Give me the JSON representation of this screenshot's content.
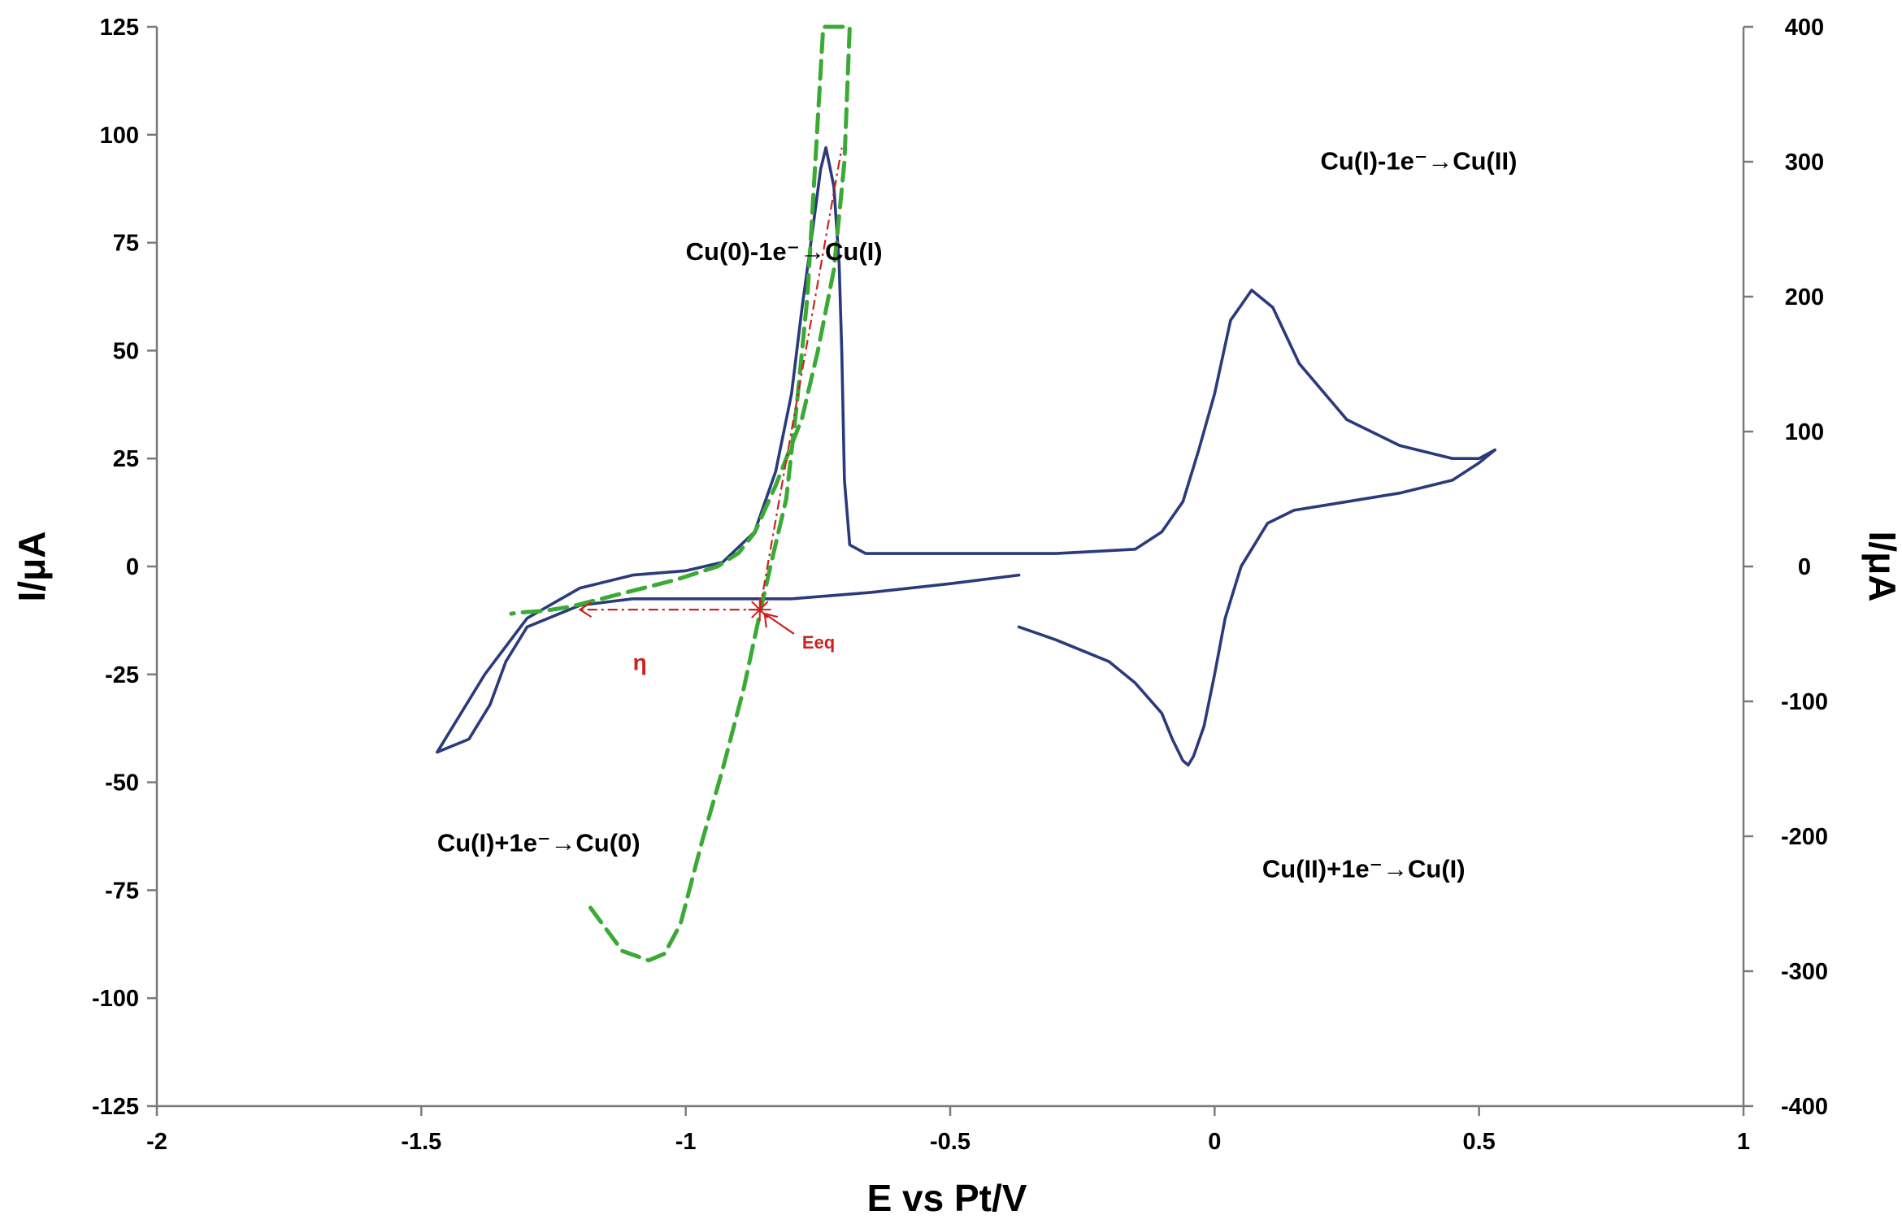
{
  "chart_data": {
    "type": "line",
    "title": "",
    "xlabel": "E vs Pt/V",
    "ylabel_left": "I/μA",
    "ylabel_right": "I/μA",
    "xlim": [
      -2,
      1
    ],
    "ylim_left": [
      -125,
      125
    ],
    "ylim_right": [
      -400,
      400
    ],
    "x_ticks": [
      "-2",
      "-1.5",
      "-1",
      "-0.5",
      "0",
      "0.5",
      "1"
    ],
    "y_left_ticks": [
      "125",
      "100",
      "75",
      "50",
      "25",
      "0",
      "-25",
      "-50",
      "-75",
      "-100",
      "-125"
    ],
    "y_right_ticks": [
      "400",
      "300",
      "200",
      "100",
      "0",
      "-100",
      "-200",
      "-300",
      "-400"
    ],
    "grid": false,
    "legend": "none",
    "colors": {
      "cv_curve": "#2b3a7a",
      "green_curve": "#3aaa35",
      "red_annotation": "#cc2222"
    },
    "series": [
      {
        "axis": "left",
        "segment": "forward-scan",
        "line": "solid",
        "x": [
          -0.37,
          -0.5,
          -0.65,
          -0.8,
          -0.95,
          -1.1,
          -1.2,
          -1.3,
          -1.34,
          -1.37,
          -1.41,
          -1.47
        ],
        "y": [
          -2,
          -4,
          -6,
          -7.5,
          -7.5,
          -7.5,
          -9,
          -14,
          -22,
          -32,
          -40,
          -43
        ]
      },
      {
        "axis": "left",
        "segment": "reverse-scan",
        "line": "solid",
        "x": [
          -1.47,
          -1.43,
          -1.38,
          -1.3,
          -1.2,
          -1.1,
          -1.0,
          -0.93,
          -0.87,
          -0.83,
          -0.8,
          -0.78,
          -0.76,
          -0.745,
          -0.735,
          -0.72,
          -0.71,
          -0.705,
          -0.7,
          -0.69,
          -0.66,
          -0.5,
          -0.3,
          -0.15,
          -0.1,
          -0.06,
          -0.03,
          0,
          0.03,
          0.07,
          0.11,
          0.16,
          0.25,
          0.35,
          0.45,
          0.5,
          0.53
        ],
        "y": [
          -43,
          -35,
          -25,
          -12,
          -5,
          -2,
          -1,
          1,
          8,
          22,
          40,
          60,
          78,
          92,
          97,
          88,
          70,
          50,
          20,
          5,
          3,
          3,
          3,
          4,
          8,
          15,
          27,
          40,
          57,
          64,
          60,
          47,
          34,
          28,
          25,
          25,
          27
        ]
      },
      {
        "axis": "left",
        "segment": "return-scan",
        "line": "solid",
        "x": [
          0.53,
          0.5,
          0.45,
          0.35,
          0.25,
          0.15,
          0.1,
          0.05,
          0.02,
          0,
          -0.02,
          -0.04,
          -0.05,
          -0.06,
          -0.08,
          -0.1,
          -0.15,
          -0.2,
          -0.3,
          -0.37
        ],
        "y": [
          27,
          24,
          20,
          17,
          15,
          13,
          10,
          0,
          -12,
          -25,
          -37,
          -44,
          -46,
          -45,
          -40,
          -34,
          -27,
          -22,
          -17,
          -14
        ]
      },
      {
        "axis": "right",
        "name": "",
        "line": "dashed",
        "x": [
          -1.18,
          -1.12,
          -1.07,
          -1.04,
          -1.01,
          -0.97,
          -0.93,
          -0.89,
          -0.86,
          -0.84,
          -0.81,
          -0.79,
          -0.77,
          -0.755,
          -0.74,
          -0.72,
          -0.7,
          -0.69,
          -0.7,
          -0.72,
          -0.75,
          -0.78,
          -0.83,
          -0.87,
          -0.9,
          -0.94,
          -0.98,
          -1.02,
          -1.07,
          -1.12,
          -1.17,
          -1.22,
          -1.27,
          -1.31,
          -1.33
        ],
        "y": [
          -253,
          -285,
          -292,
          -287,
          -265,
          -205,
          -150,
          -90,
          -35,
          0,
          50,
          120,
          200,
          300,
          400,
          400,
          400,
          400,
          300,
          220,
          160,
          110,
          60,
          25,
          10,
          0,
          -5,
          -10,
          -15,
          -20,
          -25,
          -30,
          -33,
          -34,
          -35
        ]
      }
    ],
    "guides": [
      {
        "type": "tangent",
        "line": "dash-dot",
        "x": [
          -0.86,
          -0.705
        ],
        "y": [
          -10,
          97
        ],
        "axis": "left"
      },
      {
        "type": "arrow",
        "line": "dash-dot",
        "x": [
          -0.86,
          -1.2
        ],
        "y": [
          -10,
          -10
        ],
        "axis": "left"
      }
    ],
    "annotations": [
      {
        "text": "Cu(0)-1e⁻→Cu(I)",
        "x": -1.0,
        "y": 71,
        "color": "#000000"
      },
      {
        "text": "Cu(I)-1e⁻→Cu(II)",
        "x": 0.2,
        "y": 92,
        "color": "#000000"
      },
      {
        "text": "Cu(I)+1e⁻→Cu(0)",
        "x": -1.47,
        "y": -66,
        "color": "#000000"
      },
      {
        "text": "Cu(II)+1e⁻→Cu(I)",
        "x": 0.09,
        "y": -72,
        "color": "#000000"
      },
      {
        "text": "Eeq",
        "x": -0.78,
        "y": -19,
        "color": "#cc2222"
      },
      {
        "text": "η",
        "x": -1.1,
        "y": -24,
        "color": "#cc2222"
      }
    ]
  }
}
